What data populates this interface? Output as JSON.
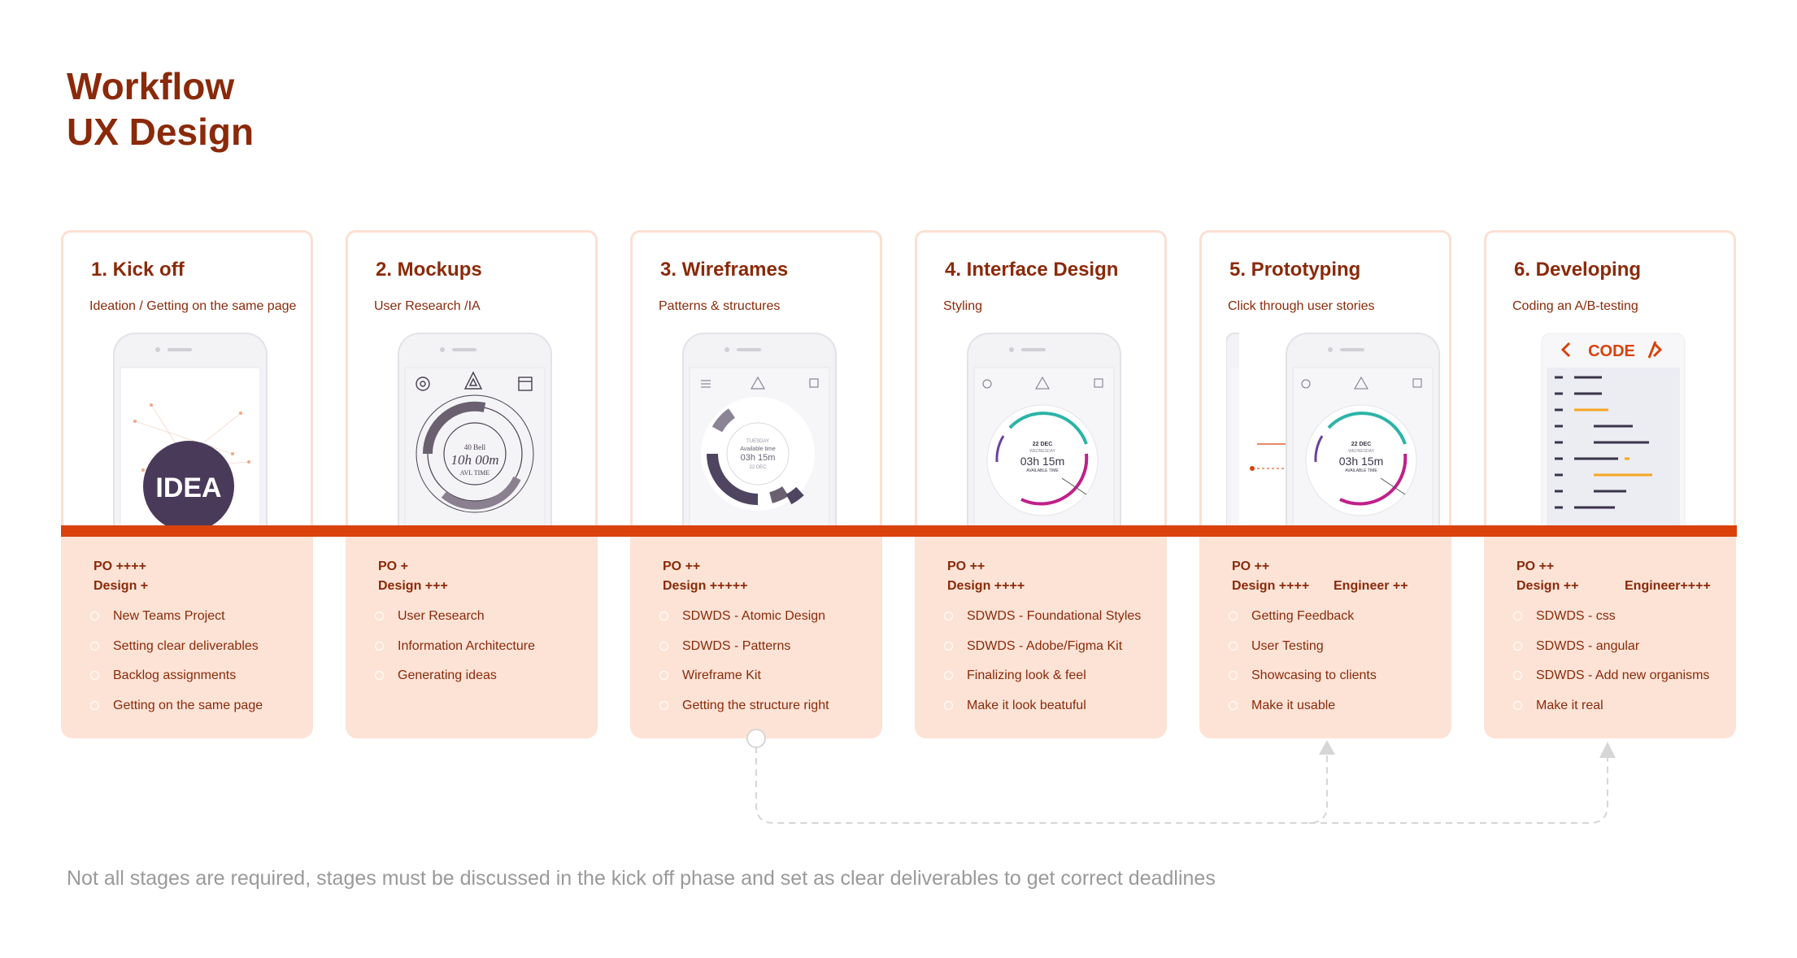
{
  "title": {
    "line1": "Workflow",
    "line2": "UX Design"
  },
  "stages": [
    {
      "title": "1. Kick off",
      "subtitle": "Ideation / Getting on the same page",
      "roles": [
        "PO ++++",
        "Design +"
      ],
      "engineer": "",
      "items": [
        "New Teams Project",
        "Setting clear deliverables",
        "Backlog assignments",
        "Getting on the same page"
      ],
      "phone_label": "IDEA"
    },
    {
      "title": "2. Mockups",
      "subtitle": "User Research /IA",
      "roles": [
        "PO +",
        "Design +++"
      ],
      "engineer": "",
      "items": [
        "User Research",
        "Information Architecture",
        "Generating ideas"
      ],
      "sketch_time": "10h 00m",
      "sketch_small": "40 Bell",
      "sketch_note": "AVL TIME"
    },
    {
      "title": "3. Wireframes",
      "subtitle": "Patterns & structures",
      "roles": [
        "PO ++",
        "Design +++++"
      ],
      "engineer": "",
      "items": [
        "SDWDS - Atomic Design",
        "SDWDS - Patterns",
        "Wireframe Kit",
        "Getting the structure right"
      ],
      "wf_day": "TUESDAY",
      "wf_label": "Available time",
      "wf_time": "03h 15m",
      "wf_date": "22 DEC"
    },
    {
      "title": "4. Interface Design",
      "subtitle": "Styling",
      "roles": [
        "PO ++",
        "Design ++++"
      ],
      "engineer": "",
      "items": [
        "SDWDS - Foundational Styles",
        "SDWDS - Adobe/Figma Kit",
        "Finalizing look & feel",
        "Make it look beatuful"
      ],
      "ui_date": "22 DEC",
      "ui_day": "WEDNESDAY",
      "ui_time": "03h 15m",
      "ui_label": "AVAILABLE TIME"
    },
    {
      "title": "5. Prototyping",
      "subtitle": "Click through user stories",
      "roles": [
        "PO ++",
        "Design ++++"
      ],
      "engineer": "Engineer ++",
      "items": [
        "Getting Feedback",
        "User Testing",
        "Showcasing to clients",
        "Make it usable"
      ],
      "ui_date": "22 DEC",
      "ui_day": "WEDNESDAY",
      "ui_time": "03h 15m",
      "ui_label": "AVAILABLE TIME"
    },
    {
      "title": "6. Developing",
      "subtitle": "Coding an A/B-testing",
      "roles": [
        "PO ++",
        "Design ++"
      ],
      "engineer": "Engineer++++",
      "items": [
        "SDWDS - css",
        "SDWDS - angular",
        "SDWDS - Add new organisms",
        "Make it real"
      ],
      "code_label": "CODE"
    }
  ],
  "footnote": "Not all stages are required, stages must be discussed in the kick off phase and set as clear deliverables to get correct deadlines",
  "colors": {
    "accent": "#d9420b",
    "title": "#8a2a0a",
    "panel": "#fde3d6",
    "border": "#fbe0d2",
    "footnote": "#9a9a9a"
  }
}
